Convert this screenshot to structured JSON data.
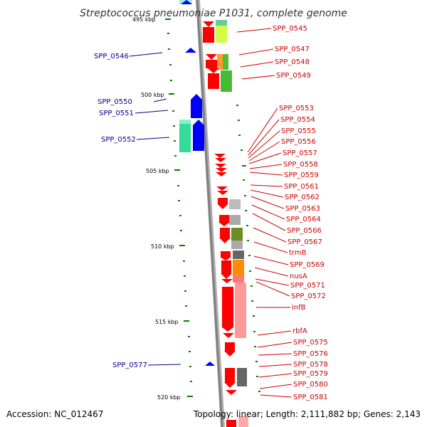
{
  "title": "Streptococcus pneumoniae P1031, complete genome",
  "footer": {
    "accession": "Accession: NC_012467",
    "summary": "Topology: linear; Length: 2,111,882 bp; Genes: 2,143"
  },
  "scale": {
    "unit": "kbp",
    "ticks": [
      {
        "kbp": 495,
        "label": "495 kbp"
      },
      {
        "kbp": 500,
        "label": "500 kbp"
      },
      {
        "kbp": 505,
        "label": "505 kbp"
      },
      {
        "kbp": 510,
        "label": "510 kbp"
      },
      {
        "kbp": 515,
        "label": "515 kbp"
      },
      {
        "kbp": 520,
        "label": "520 kbp"
      }
    ]
  },
  "colors": {
    "forward_strand": "#ff0000",
    "reverse_strand": "#0000ff",
    "right_label": "#cc0000",
    "left_label": "#00008b",
    "axis": "#808080",
    "tick": "#008000"
  },
  "genes_right": [
    {
      "name": "SPP_0545",
      "kbp": 495.8
    },
    {
      "name": "SPP_0547",
      "kbp": 497.2
    },
    {
      "name": "SPP_0548",
      "kbp": 497.6
    },
    {
      "name": "SPP_0549",
      "kbp": 498.3
    },
    {
      "name": "SPP_0553",
      "kbp": 503.6
    },
    {
      "name": "SPP_0554",
      "kbp": 503.9
    },
    {
      "name": "SPP_0555",
      "kbp": 504.2
    },
    {
      "name": "SPP_0556",
      "kbp": 504.5
    },
    {
      "name": "SPP_0557",
      "kbp": 504.8
    },
    {
      "name": "SPP_0558",
      "kbp": 505.0
    },
    {
      "name": "SPP_0559",
      "kbp": 505.3
    },
    {
      "name": "SPP_0561",
      "kbp": 506.3
    },
    {
      "name": "SPP_0562",
      "kbp": 506.6
    },
    {
      "name": "SPP_0563",
      "kbp": 507.2
    },
    {
      "name": "SPP_0564",
      "kbp": 507.9
    },
    {
      "name": "SPP_0566",
      "kbp": 508.7
    },
    {
      "name": "SPP_0567",
      "kbp": 509.3
    },
    {
      "name": "trmB",
      "kbp": 510.0
    },
    {
      "name": "SPP_0569",
      "kbp": 510.6
    },
    {
      "name": "nusA",
      "kbp": 511.3
    },
    {
      "name": "SPP_0571",
      "kbp": 511.7
    },
    {
      "name": "SPP_0572",
      "kbp": 511.9
    },
    {
      "name": "infB",
      "kbp": 513.0
    },
    {
      "name": "rbfA",
      "kbp": 516.3
    },
    {
      "name": "SPP_0575",
      "kbp": 517.0
    },
    {
      "name": "SPP_0576",
      "kbp": 517.4
    },
    {
      "name": "SPP_0578",
      "kbp": 518.6
    },
    {
      "name": "SPP_0579",
      "kbp": 519.0
    },
    {
      "name": "SPP_0580",
      "kbp": 519.6
    },
    {
      "name": "SPP_0581",
      "kbp": 520.0
    }
  ],
  "genes_left": [
    {
      "name": "SPP_0546",
      "kbp": 496.9
    },
    {
      "name": "SPP_0550",
      "kbp": 500.4
    },
    {
      "name": "SPP_0551",
      "kbp": 500.9
    },
    {
      "name": "SPP_0552",
      "kbp": 502.4
    },
    {
      "name": "SPP_0577",
      "kbp": 518.1
    }
  ]
}
